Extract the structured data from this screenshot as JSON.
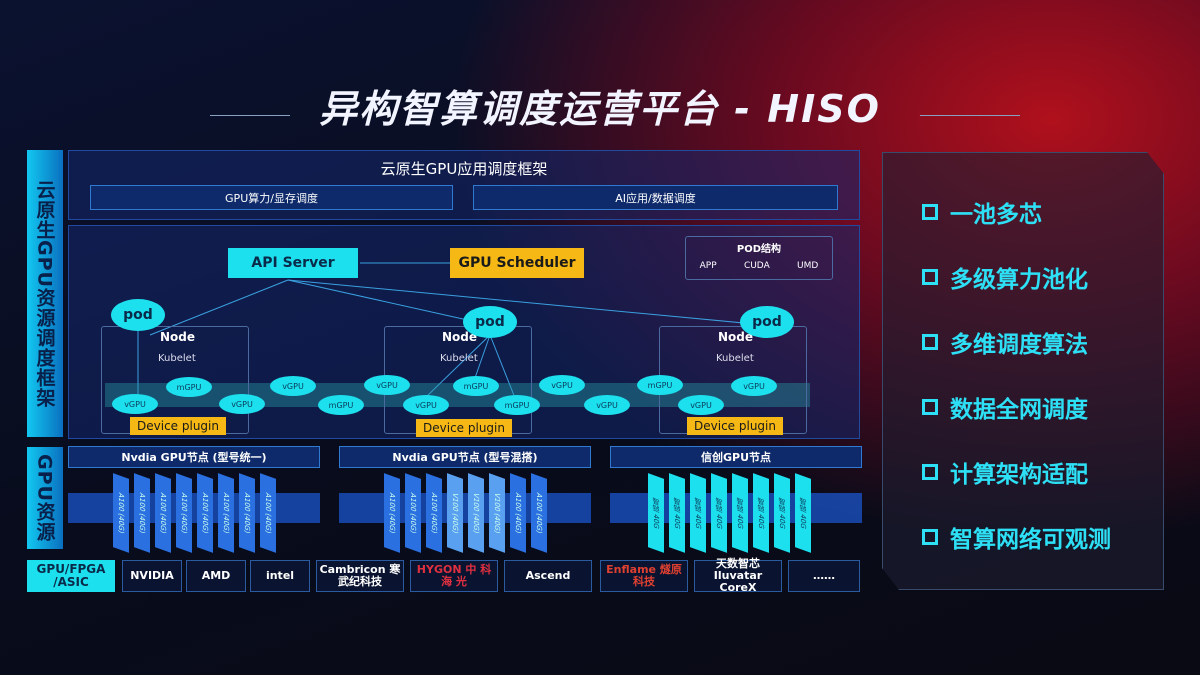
{
  "title": "异构智算调度运营平台 - HISO",
  "left_labels": {
    "scheduling": "云原生GPU资源调度框架",
    "resources": "GPU资源"
  },
  "framework": {
    "title": "云原生GPU应用调度框架",
    "sub": [
      "GPU算力/显存调度",
      "AI应用/数据调度"
    ]
  },
  "diagram": {
    "api_server": "API Server",
    "gpu_scheduler": "GPU Scheduler",
    "pod_struct": {
      "title": "POD结构",
      "items": [
        "APP",
        "CUDA",
        "UMD"
      ]
    },
    "pod": "pod",
    "node": "Node",
    "kubelet": "Kubelet",
    "device_plugin": "Device plugin",
    "gpus": [
      "vGPU",
      "mGPU",
      "vGPU",
      "vGPU",
      "mGPU",
      "vGPU",
      "vGPU",
      "mGPU",
      "mGPU",
      "vGPU",
      "vGPU",
      "mGPU",
      "vGPU",
      "vGPU"
    ]
  },
  "gpu_nodes": [
    {
      "title": "Nvdia GPU节点 (型号统一)",
      "chips": [
        "A100 (40G)",
        "A100 (40G)",
        "A100 (40G)",
        "A100 (40G)",
        "A100 (40G)",
        "A100 (40G)",
        "A100 (40G)",
        "A100 (40G)"
      ]
    },
    {
      "title": "Nvdia GPU节点 (型号混搭)",
      "chips": [
        "A100 (40G)",
        "A100 (40G)",
        "A100 (40G)",
        "V100 (40G)",
        "V100 (40G)",
        "V100 (40G)",
        "A100 (40G)",
        "A100 (40G)"
      ]
    },
    {
      "title": "信创GPU节点",
      "chips": [
        "智铠 40G",
        "智铠 40G",
        "智铠 40G",
        "智铠 40G",
        "智铠 40G",
        "智铠 40G",
        "智铠 40G",
        "智铠 40G"
      ]
    }
  ],
  "vendors": {
    "label": "GPU/FPGA /ASIC",
    "logos": [
      "NVIDIA",
      "AMD",
      "intel",
      "Cambricon 寒武纪科技",
      "HYGON 中 科 海 光",
      "Ascend",
      "Enflame 燧原科技",
      "天数智芯 Iluvatar CoreX",
      "……"
    ]
  },
  "features": [
    "一池多芯",
    "多级算力池化",
    "多维调度算法",
    "数据全网调度",
    "计算架构适配",
    "智算网络可观测"
  ],
  "colors": {
    "accent": "#1de0ee",
    "highlight": "#f5b814",
    "feature": "#2de0f5"
  }
}
